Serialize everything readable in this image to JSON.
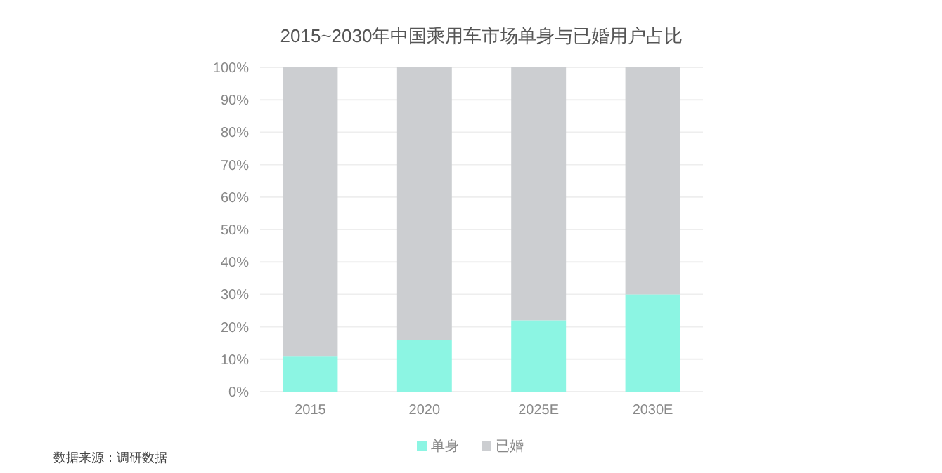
{
  "chart_data": {
    "type": "bar",
    "title": "2015~2030年中国乘用车市场单身与已婚用户占比",
    "categories": [
      "2015",
      "2020",
      "2025E",
      "2030E"
    ],
    "stacked": true,
    "series": [
      {
        "name": "单身",
        "color": "#8cf5e3",
        "values": [
          11,
          16,
          22,
          30
        ]
      },
      {
        "name": "已婚",
        "color": "#ccced1",
        "values": [
          89,
          84,
          78,
          70
        ]
      }
    ],
    "ylim": [
      0,
      100
    ],
    "yticks": [
      {
        "value": 0,
        "label": "0%"
      },
      {
        "value": 10,
        "label": "10%"
      },
      {
        "value": 20,
        "label": "20%"
      },
      {
        "value": 30,
        "label": "30%"
      },
      {
        "value": 40,
        "label": "40%"
      },
      {
        "value": 50,
        "label": "50%"
      },
      {
        "value": 60,
        "label": "60%"
      },
      {
        "value": 70,
        "label": "70%"
      },
      {
        "value": 80,
        "label": "80%"
      },
      {
        "value": 90,
        "label": "90%"
      },
      {
        "value": 100,
        "label": "100%"
      }
    ],
    "grid": "y",
    "legend": "bottom",
    "annotations": [
      "数据来源：调研数据"
    ]
  }
}
